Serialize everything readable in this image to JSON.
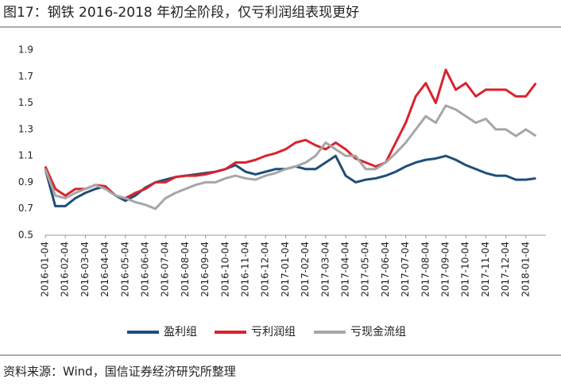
{
  "chart_data": {
    "type": "line",
    "title": "图17：钢铁 2016-2018 年初全阶段，仅亏利润组表现更好",
    "source": "资料来源：Wind，国信证券经济研究所整理",
    "categories": [
      "2016-01-04",
      null,
      "2016-02-04",
      null,
      "2016-03-04",
      null,
      "2016-04-04",
      null,
      "2016-05-04",
      null,
      "2016-06-04",
      null,
      "2016-07-04",
      null,
      "2016-08-04",
      null,
      "2016-09-04",
      null,
      "2016-10-04",
      null,
      "2016-11-04",
      null,
      "2016-12-04",
      null,
      "2017-01-04",
      null,
      "2017-02-04",
      null,
      "2017-03-04",
      null,
      "2017-04-04",
      null,
      "2017-05-04",
      null,
      "2017-06-04",
      null,
      "2017-07-04",
      null,
      "2017-08-04",
      null,
      "2017-09-04",
      null,
      "2017-10-04",
      null,
      "2017-11-04",
      null,
      "2017-12-04",
      null,
      "2018-01-04",
      null
    ],
    "series": [
      {
        "name": "盈利组",
        "color": "#1f4e79",
        "values": [
          1.0,
          0.72,
          0.72,
          0.78,
          0.82,
          0.85,
          0.87,
          0.8,
          0.76,
          0.8,
          0.86,
          0.9,
          0.92,
          0.94,
          0.95,
          0.96,
          0.97,
          0.98,
          1.0,
          1.03,
          0.98,
          0.96,
          0.98,
          1.0,
          1.0,
          1.02,
          1.0,
          1.0,
          1.05,
          1.1,
          0.95,
          0.9,
          0.92,
          0.93,
          0.95,
          0.98,
          1.02,
          1.05,
          1.07,
          1.08,
          1.1,
          1.07,
          1.03,
          1.0,
          0.97,
          0.95,
          0.95,
          0.92,
          0.92,
          0.93
        ]
      },
      {
        "name": "亏利润组",
        "color": "#d9232e",
        "values": [
          1.02,
          0.85,
          0.8,
          0.85,
          0.85,
          0.88,
          0.87,
          0.8,
          0.78,
          0.82,
          0.85,
          0.9,
          0.9,
          0.94,
          0.95,
          0.95,
          0.96,
          0.98,
          1.0,
          1.05,
          1.05,
          1.07,
          1.1,
          1.12,
          1.15,
          1.2,
          1.22,
          1.18,
          1.15,
          1.2,
          1.15,
          1.08,
          1.05,
          1.02,
          1.05,
          1.2,
          1.35,
          1.55,
          1.65,
          1.5,
          1.75,
          1.6,
          1.65,
          1.55,
          1.6,
          1.6,
          1.6,
          1.55,
          1.55,
          1.65
        ]
      },
      {
        "name": "亏现金流组",
        "color": "#a6a6a6",
        "values": [
          1.0,
          0.8,
          0.78,
          0.82,
          0.85,
          0.88,
          0.85,
          0.8,
          0.78,
          0.75,
          0.73,
          0.7,
          0.78,
          0.82,
          0.85,
          0.88,
          0.9,
          0.9,
          0.93,
          0.95,
          0.93,
          0.92,
          0.95,
          0.97,
          1.0,
          1.02,
          1.05,
          1.1,
          1.2,
          1.15,
          1.1,
          1.1,
          1.0,
          1.0,
          1.05,
          1.12,
          1.2,
          1.3,
          1.4,
          1.35,
          1.48,
          1.45,
          1.4,
          1.35,
          1.38,
          1.3,
          1.3,
          1.25,
          1.3,
          1.25
        ]
      }
    ],
    "ylim": [
      0.5,
      1.9
    ],
    "yticks": [
      0.5,
      0.7,
      0.9,
      1.1,
      1.3,
      1.5,
      1.7,
      1.9
    ]
  }
}
